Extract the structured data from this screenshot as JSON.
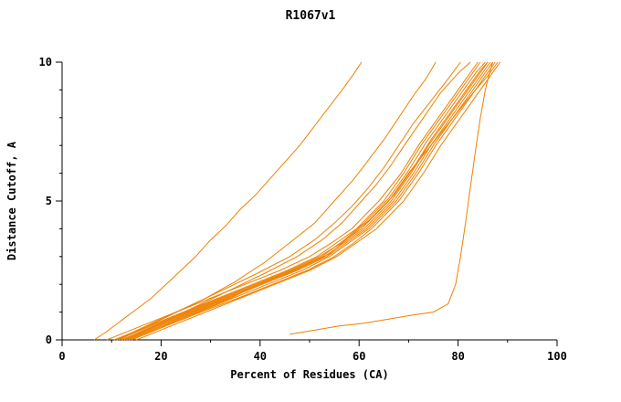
{
  "chart_data": {
    "type": "line",
    "title": "R1067v1",
    "xlabel": "Percent of Residues (CA)",
    "ylabel": "Distance Cutoff, A",
    "xlim": [
      0,
      100
    ],
    "ylim": [
      0,
      10
    ],
    "x_major_ticks": [
      0,
      20,
      40,
      60,
      80,
      100
    ],
    "x_minor_step": 10,
    "y_major_ticks": [
      0,
      5,
      10
    ],
    "y_minor_step": 1,
    "grid": false,
    "legend": "none",
    "line_color": "#ee8000",
    "axis_color": "#000000",
    "series": [
      [
        [
          6.5,
          0
        ],
        [
          9,
          0.3
        ],
        [
          12,
          0.7
        ],
        [
          15,
          1.1
        ],
        [
          18,
          1.5
        ],
        [
          21,
          2
        ],
        [
          24,
          2.5
        ],
        [
          27,
          3
        ],
        [
          30,
          3.6
        ],
        [
          33,
          4.1
        ],
        [
          36,
          4.7
        ],
        [
          39,
          5.2
        ],
        [
          42,
          5.8
        ],
        [
          45,
          6.4
        ],
        [
          48,
          7
        ],
        [
          51,
          7.7
        ],
        [
          54,
          8.4
        ],
        [
          57,
          9.1
        ],
        [
          59,
          9.6
        ],
        [
          60.5,
          10
        ]
      ],
      [
        [
          11,
          0
        ],
        [
          17,
          0.5
        ],
        [
          23,
          1
        ],
        [
          29,
          1.5
        ],
        [
          35,
          2.1
        ],
        [
          41,
          2.8
        ],
        [
          46,
          3.5
        ],
        [
          51,
          4.2
        ],
        [
          55,
          5
        ],
        [
          59,
          5.8
        ],
        [
          62,
          6.5
        ],
        [
          65,
          7.2
        ],
        [
          68,
          8
        ],
        [
          71,
          8.8
        ],
        [
          73.5,
          9.4
        ],
        [
          75.5,
          10
        ]
      ],
      [
        [
          12,
          0
        ],
        [
          19,
          0.5
        ],
        [
          26,
          1
        ],
        [
          33,
          1.5
        ],
        [
          40,
          2
        ],
        [
          47,
          2.5
        ],
        [
          53,
          3
        ],
        [
          57,
          3.5
        ],
        [
          61,
          4
        ],
        [
          66.5,
          5
        ],
        [
          70.5,
          6
        ],
        [
          74,
          7
        ],
        [
          78,
          8
        ],
        [
          82,
          9
        ],
        [
          84,
          9.5
        ],
        [
          86,
          10
        ]
      ],
      [
        [
          13.5,
          0
        ],
        [
          20.5,
          0.5
        ],
        [
          27.5,
          1
        ],
        [
          34.5,
          1.5
        ],
        [
          41.5,
          2
        ],
        [
          48.5,
          2.5
        ],
        [
          54,
          3
        ],
        [
          58,
          3.5
        ],
        [
          62,
          4
        ],
        [
          67.5,
          5
        ],
        [
          71.5,
          6
        ],
        [
          75,
          7
        ],
        [
          79,
          8
        ],
        [
          83,
          9
        ],
        [
          85,
          9.5
        ],
        [
          87,
          10
        ]
      ],
      [
        [
          15,
          0
        ],
        [
          22,
          0.5
        ],
        [
          29,
          1
        ],
        [
          36,
          1.5
        ],
        [
          43,
          2
        ],
        [
          50,
          2.5
        ],
        [
          55.5,
          3
        ],
        [
          59.5,
          3.5
        ],
        [
          63.5,
          4
        ],
        [
          69,
          5
        ],
        [
          73,
          6
        ],
        [
          76.5,
          7
        ],
        [
          80.5,
          8
        ],
        [
          84.5,
          9
        ],
        [
          86.5,
          9.5
        ],
        [
          88.5,
          10
        ]
      ],
      [
        [
          10.5,
          0
        ],
        [
          17.5,
          0.5
        ],
        [
          24.5,
          1
        ],
        [
          31.5,
          1.5
        ],
        [
          38.5,
          2
        ],
        [
          45.5,
          2.5
        ],
        [
          51.5,
          3
        ],
        [
          55.5,
          3.5
        ],
        [
          59.5,
          4
        ],
        [
          65,
          5
        ],
        [
          69,
          6
        ],
        [
          72.5,
          7
        ],
        [
          76.5,
          8
        ],
        [
          80.5,
          9
        ],
        [
          82.5,
          9.5
        ],
        [
          84.5,
          10
        ]
      ],
      [
        [
          9,
          0
        ],
        [
          16,
          0.5
        ],
        [
          23,
          1
        ],
        [
          30,
          1.5
        ],
        [
          37,
          2
        ],
        [
          44,
          2.5
        ],
        [
          50,
          3
        ],
        [
          54.5,
          3.5
        ],
        [
          58.5,
          4
        ],
        [
          64,
          5
        ],
        [
          68.5,
          6
        ],
        [
          72,
          7
        ],
        [
          76,
          8
        ],
        [
          80,
          9
        ],
        [
          82,
          9.5
        ],
        [
          84,
          10
        ]
      ],
      [
        [
          14,
          0
        ],
        [
          21,
          0.5
        ],
        [
          28,
          1
        ],
        [
          35.5,
          1.5
        ],
        [
          42.5,
          2
        ],
        [
          49.5,
          2.5
        ],
        [
          55,
          3
        ],
        [
          59,
          3.5
        ],
        [
          62.5,
          4
        ],
        [
          68,
          5
        ],
        [
          72,
          6
        ],
        [
          75.5,
          7
        ],
        [
          79.5,
          8
        ],
        [
          83.5,
          9
        ],
        [
          85.5,
          9.5
        ],
        [
          87.5,
          10
        ]
      ],
      [
        [
          12.5,
          0
        ],
        [
          19.5,
          0.5
        ],
        [
          26.5,
          1
        ],
        [
          33.5,
          1.5
        ],
        [
          40.5,
          2
        ],
        [
          47.5,
          2.5
        ],
        [
          53.5,
          3
        ],
        [
          57.5,
          3.5
        ],
        [
          61.5,
          4
        ],
        [
          67,
          5
        ],
        [
          71,
          6
        ],
        [
          74.5,
          7
        ],
        [
          78.5,
          8
        ],
        [
          82.5,
          9
        ],
        [
          84.5,
          9.5
        ],
        [
          86.5,
          10
        ]
      ],
      [
        [
          11,
          0
        ],
        [
          18,
          0.5
        ],
        [
          25,
          1
        ],
        [
          32,
          1.5
        ],
        [
          39,
          2
        ],
        [
          46,
          2.5
        ],
        [
          52,
          3
        ],
        [
          56.5,
          3.5
        ],
        [
          60.5,
          4
        ],
        [
          66,
          5
        ],
        [
          70,
          6
        ],
        [
          74.5,
          7
        ],
        [
          79,
          8
        ],
        [
          83.5,
          9
        ],
        [
          86,
          9.5
        ],
        [
          88,
          10
        ]
      ],
      [
        [
          12,
          0
        ],
        [
          18.5,
          0.5
        ],
        [
          25.5,
          1
        ],
        [
          32.5,
          1.5
        ],
        [
          39.5,
          2
        ],
        [
          46.5,
          2.5
        ],
        [
          52.5,
          3
        ],
        [
          57,
          3.6
        ],
        [
          61,
          4.2
        ],
        [
          66,
          5.1
        ],
        [
          70,
          6.1
        ],
        [
          73.5,
          7.1
        ],
        [
          77.5,
          8.1
        ],
        [
          81.5,
          9.1
        ],
        [
          83.5,
          9.6
        ],
        [
          85.5,
          10
        ]
      ],
      [
        [
          13,
          0
        ],
        [
          20,
          0.5
        ],
        [
          27,
          1
        ],
        [
          34,
          1.5
        ],
        [
          41,
          2.1
        ],
        [
          48,
          2.6
        ],
        [
          54,
          3.1
        ],
        [
          58,
          3.7
        ],
        [
          62,
          4.3
        ],
        [
          67,
          5.2
        ],
        [
          71,
          6.2
        ],
        [
          74.5,
          7.2
        ],
        [
          78.5,
          8.2
        ],
        [
          82.5,
          9.2
        ],
        [
          84.5,
          9.7
        ],
        [
          86,
          10
        ]
      ],
      [
        [
          11.5,
          0
        ],
        [
          18.5,
          0.6
        ],
        [
          25.5,
          1.2
        ],
        [
          32.5,
          1.8
        ],
        [
          39.5,
          2.4
        ],
        [
          46,
          3
        ],
        [
          51,
          3.6
        ],
        [
          55,
          4.2
        ],
        [
          58.5,
          4.8
        ],
        [
          62,
          5.5
        ],
        [
          65,
          6.2
        ],
        [
          68,
          7
        ],
        [
          71,
          7.8
        ],
        [
          74.5,
          8.6
        ],
        [
          78,
          9.4
        ],
        [
          80.5,
          10
        ]
      ],
      [
        [
          13,
          0
        ],
        [
          20,
          0.6
        ],
        [
          27,
          1.2
        ],
        [
          34,
          1.8
        ],
        [
          41,
          2.4
        ],
        [
          47.5,
          3
        ],
        [
          52.5,
          3.6
        ],
        [
          56.5,
          4.2
        ],
        [
          60,
          4.9
        ],
        [
          63.5,
          5.6
        ],
        [
          66.5,
          6.3
        ],
        [
          69.5,
          7.1
        ],
        [
          73,
          8
        ],
        [
          76.5,
          8.9
        ],
        [
          80,
          9.6
        ],
        [
          82.5,
          10
        ]
      ],
      [
        [
          46,
          0.2
        ],
        [
          51,
          0.35
        ],
        [
          56,
          0.5
        ],
        [
          61,
          0.6
        ],
        [
          66,
          0.75
        ],
        [
          71,
          0.9
        ],
        [
          75,
          1
        ],
        [
          78,
          1.3
        ],
        [
          79.5,
          2
        ],
        [
          80.5,
          3
        ],
        [
          81.5,
          4.2
        ],
        [
          82.5,
          5.5
        ],
        [
          83.5,
          6.8
        ],
        [
          84.5,
          8
        ],
        [
          85.5,
          9
        ],
        [
          86.5,
          9.7
        ],
        [
          87,
          10
        ]
      ]
    ]
  }
}
